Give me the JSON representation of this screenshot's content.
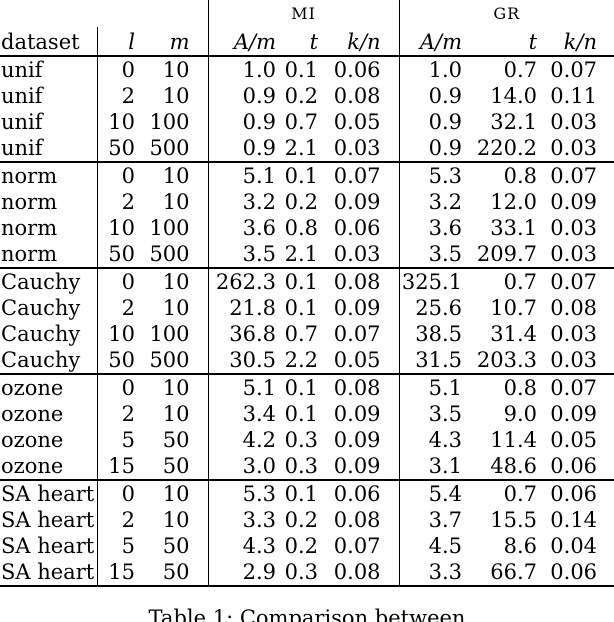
{
  "table": {
    "group_headers": {
      "mi": "MI",
      "gr": "GR"
    },
    "columns": [
      "dataset",
      "l",
      "m",
      "A/m",
      "t",
      "k/n",
      "A/m",
      "t",
      "k/n"
    ],
    "groups": [
      {
        "dataset": "unif",
        "rows": [
          [
            "unif",
            "0",
            "10",
            "1.0",
            "0.1",
            "0.06",
            "1.0",
            "0.7",
            "0.07"
          ],
          [
            "unif",
            "2",
            "10",
            "0.9",
            "0.2",
            "0.08",
            "0.9",
            "14.0",
            "0.11"
          ],
          [
            "unif",
            "10",
            "100",
            "0.9",
            "0.7",
            "0.05",
            "0.9",
            "32.1",
            "0.03"
          ],
          [
            "unif",
            "50",
            "500",
            "0.9",
            "2.1",
            "0.03",
            "0.9",
            "220.2",
            "0.03"
          ]
        ]
      },
      {
        "dataset": "norm",
        "rows": [
          [
            "norm",
            "0",
            "10",
            "5.1",
            "0.1",
            "0.07",
            "5.3",
            "0.8",
            "0.07"
          ],
          [
            "norm",
            "2",
            "10",
            "3.2",
            "0.2",
            "0.09",
            "3.2",
            "12.0",
            "0.09"
          ],
          [
            "norm",
            "10",
            "100",
            "3.6",
            "0.8",
            "0.06",
            "3.6",
            "33.1",
            "0.03"
          ],
          [
            "norm",
            "50",
            "500",
            "3.5",
            "2.1",
            "0.03",
            "3.5",
            "209.7",
            "0.03"
          ]
        ]
      },
      {
        "dataset": "Cauchy",
        "rows": [
          [
            "Cauchy",
            "0",
            "10",
            "262.3",
            "0.1",
            "0.08",
            "325.1",
            "0.7",
            "0.07"
          ],
          [
            "Cauchy",
            "2",
            "10",
            "21.8",
            "0.1",
            "0.09",
            "25.6",
            "10.7",
            "0.08"
          ],
          [
            "Cauchy",
            "10",
            "100",
            "36.8",
            "0.7",
            "0.07",
            "38.5",
            "31.4",
            "0.03"
          ],
          [
            "Cauchy",
            "50",
            "500",
            "30.5",
            "2.2",
            "0.05",
            "31.5",
            "203.3",
            "0.03"
          ]
        ]
      },
      {
        "dataset": "ozone",
        "rows": [
          [
            "ozone",
            "0",
            "10",
            "5.1",
            "0.1",
            "0.08",
            "5.1",
            "0.8",
            "0.07"
          ],
          [
            "ozone",
            "2",
            "10",
            "3.4",
            "0.1",
            "0.09",
            "3.5",
            "9.0",
            "0.09"
          ],
          [
            "ozone",
            "5",
            "50",
            "4.2",
            "0.3",
            "0.09",
            "4.3",
            "11.4",
            "0.05"
          ],
          [
            "ozone",
            "15",
            "50",
            "3.0",
            "0.3",
            "0.09",
            "3.1",
            "48.6",
            "0.06"
          ]
        ]
      },
      {
        "dataset": "SA heart",
        "rows": [
          [
            "SA heart",
            "0",
            "10",
            "5.3",
            "0.1",
            "0.06",
            "5.4",
            "0.7",
            "0.06"
          ],
          [
            "SA heart",
            "2",
            "10",
            "3.3",
            "0.2",
            "0.08",
            "3.7",
            "15.5",
            "0.14"
          ],
          [
            "SA heart",
            "5",
            "50",
            "4.3",
            "0.2",
            "0.07",
            "4.5",
            "8.6",
            "0.04"
          ],
          [
            "SA heart",
            "15",
            "50",
            "2.9",
            "0.3",
            "0.08",
            "3.3",
            "66.7",
            "0.06"
          ]
        ]
      }
    ]
  },
  "caption": "Table 1: Comparison between"
}
